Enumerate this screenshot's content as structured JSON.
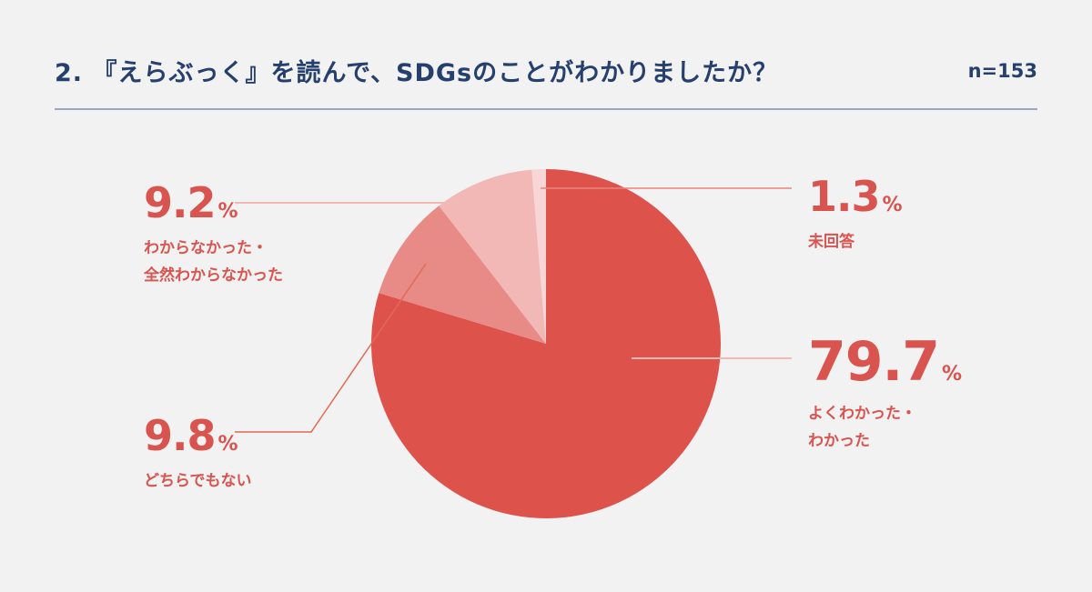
{
  "header": {
    "title": "2. 『えらぶっく』を読んで、SDGsのことがわかりましたか？",
    "sample_size": "n=153"
  },
  "colors": {
    "title": "#26406e",
    "accent": "#d9534f",
    "background": "#f2f2f2"
  },
  "chart_data": {
    "type": "pie",
    "start_angle_deg": 0,
    "direction": "clockwise",
    "slices": [
      {
        "label_lines": [
          "よくわかった・",
          "わかった"
        ],
        "value": 79.7,
        "display": "79.7",
        "unit": "%",
        "color": "#de524c"
      },
      {
        "label_lines": [
          "どちらでもない"
        ],
        "value": 9.8,
        "display": "9.8",
        "unit": "%",
        "color": "#e88a85"
      },
      {
        "label_lines": [
          "わからなかった・",
          "全然わからなかった"
        ],
        "value": 9.2,
        "display": "9.2",
        "unit": "%",
        "color": "#f2b8b6"
      },
      {
        "label_lines": [
          "未回答"
        ],
        "value": 1.3,
        "display": "1.3",
        "unit": "%",
        "color": "#f7d6d5"
      }
    ]
  }
}
